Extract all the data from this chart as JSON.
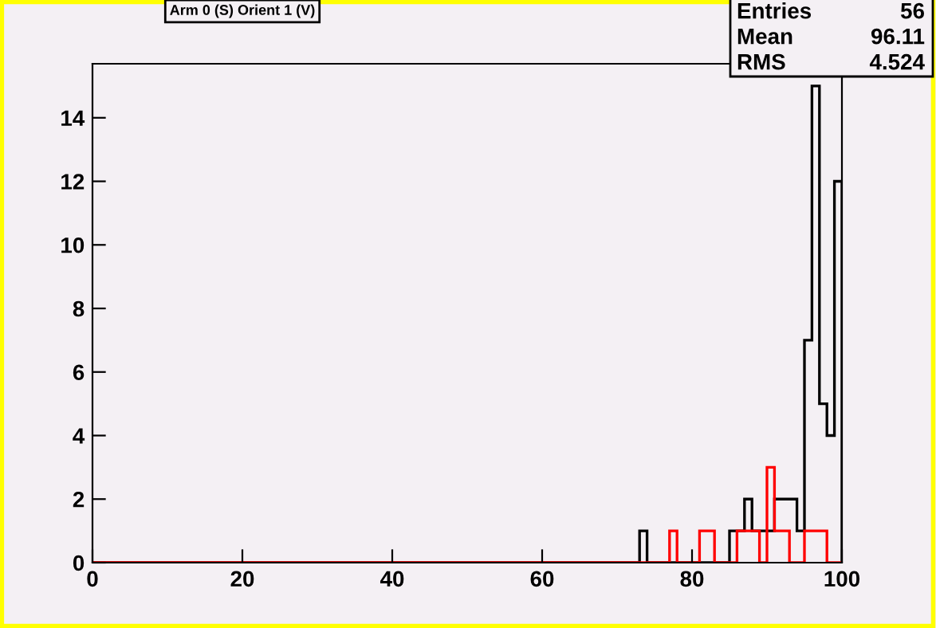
{
  "chart_data": {
    "type": "histogram",
    "title": "Arm 0 (S) Orient 1 (V)",
    "bins": [
      0,
      1,
      2,
      3,
      4,
      5,
      6,
      7,
      8,
      9,
      10,
      11,
      12,
      13,
      14,
      15,
      16,
      17,
      18,
      19,
      20,
      21,
      22,
      23,
      24,
      25,
      26,
      27,
      28,
      29,
      30,
      31,
      32,
      33,
      34,
      35,
      36,
      37,
      38,
      39,
      40,
      41,
      42,
      43,
      44,
      45,
      46,
      47,
      48,
      49,
      50,
      51,
      52,
      53,
      54,
      55,
      56,
      57,
      58,
      59,
      60,
      61,
      62,
      63,
      64,
      65,
      66,
      67,
      68,
      69,
      70,
      71,
      72,
      73,
      74,
      75,
      76,
      77,
      78,
      79,
      80,
      81,
      82,
      83,
      84,
      85,
      86,
      87,
      88,
      89,
      90,
      91,
      92,
      93,
      94,
      95,
      96,
      97,
      98,
      99,
      100
    ],
    "series": [
      {
        "color": "#000000",
        "values": [
          0,
          0,
          0,
          0,
          0,
          0,
          0,
          0,
          0,
          0,
          0,
          0,
          0,
          0,
          0,
          0,
          0,
          0,
          0,
          0,
          0,
          0,
          0,
          0,
          0,
          0,
          0,
          0,
          0,
          0,
          0,
          0,
          0,
          0,
          0,
          0,
          0,
          0,
          0,
          0,
          0,
          0,
          0,
          0,
          0,
          0,
          0,
          0,
          0,
          0,
          0,
          0,
          0,
          0,
          0,
          0,
          0,
          0,
          0,
          0,
          0,
          0,
          0,
          0,
          0,
          0,
          0,
          0,
          0,
          0,
          0,
          0,
          0,
          1,
          0,
          0,
          0,
          0,
          0,
          0,
          0,
          0,
          0,
          0,
          0,
          1,
          1,
          2,
          1,
          1,
          1,
          2,
          2,
          2,
          1,
          7,
          15,
          5,
          4,
          12
        ]
      },
      {
        "color": "#ff0000",
        "values": [
          0,
          0,
          0,
          0,
          0,
          0,
          0,
          0,
          0,
          0,
          0,
          0,
          0,
          0,
          0,
          0,
          0,
          0,
          0,
          0,
          0,
          0,
          0,
          0,
          0,
          0,
          0,
          0,
          0,
          0,
          0,
          0,
          0,
          0,
          0,
          0,
          0,
          0,
          0,
          0,
          0,
          0,
          0,
          0,
          0,
          0,
          0,
          0,
          0,
          0,
          0,
          0,
          0,
          0,
          0,
          0,
          0,
          0,
          0,
          0,
          0,
          0,
          0,
          0,
          0,
          0,
          0,
          0,
          0,
          0,
          0,
          0,
          0,
          0,
          0,
          0,
          0,
          1,
          0,
          0,
          0,
          1,
          1,
          0,
          0,
          0,
          1,
          1,
          1,
          0,
          3,
          1,
          1,
          0,
          0,
          1,
          1,
          1,
          0,
          0
        ]
      }
    ],
    "xlim": [
      0,
      100
    ],
    "ylim": [
      0,
      15.7
    ],
    "xticks": [
      0,
      20,
      40,
      60,
      80,
      100
    ],
    "yticks": [
      0,
      2,
      4,
      6,
      8,
      10,
      12,
      14
    ],
    "grid": false,
    "legend": false,
    "annotations": [
      "Entries",
      "56",
      "Mean",
      "96.11",
      "RMS",
      "4.524"
    ]
  }
}
